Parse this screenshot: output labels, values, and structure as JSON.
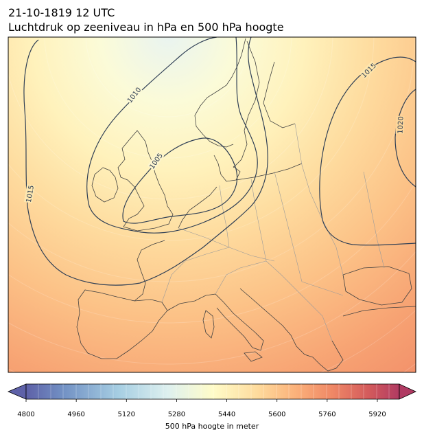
{
  "title": {
    "line1": "21-10-1819 12 UTC",
    "line2": "Luchtdruk op zeeniveau in hPa en 500 hPa hoogte"
  },
  "isobars": {
    "color": "#2f3f55",
    "labels": [
      "1010",
      "1005",
      "1015",
      "1015",
      "1020"
    ]
  },
  "colorbar": {
    "label": "500 hPa hoogte in meter",
    "min": 4800,
    "max": 5990,
    "ticks": [
      "4800",
      "4960",
      "5120",
      "5280",
      "5440",
      "5600",
      "5760",
      "5920"
    ],
    "palette": [
      "#5e61a8",
      "#6f84bb",
      "#8fb0d3",
      "#b3d8e6",
      "#e6f2f0",
      "#fffccd",
      "#fee5a6",
      "#fdc587",
      "#f59e70",
      "#e46f5e",
      "#c44a5d",
      "#a63566"
    ]
  },
  "colors": {
    "coastline": "#404040",
    "border": "#9a9a9a",
    "frame": "#000000"
  }
}
